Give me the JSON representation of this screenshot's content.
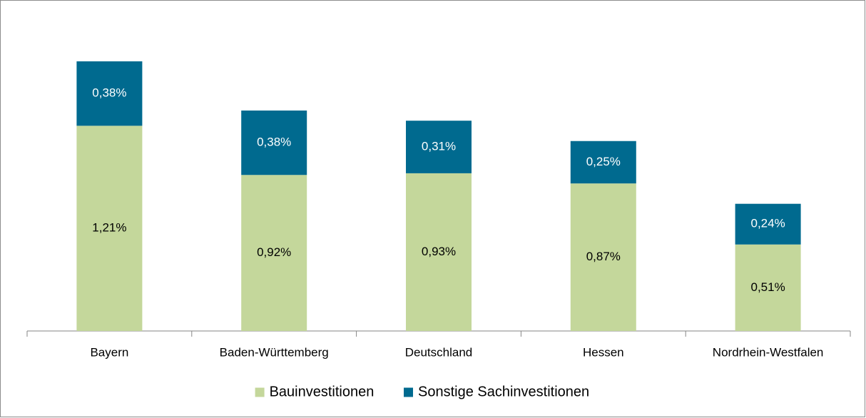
{
  "chart_data": {
    "type": "bar",
    "stacked": true,
    "categories": [
      "Bayern",
      "Baden-Württemberg",
      "Deutschland",
      "Hessen",
      "Nordrhein-Westfalen"
    ],
    "series": [
      {
        "name": "Bauinvestitionen",
        "color": "#c4d79b",
        "label_color": "#000000",
        "values": [
          1.21,
          0.92,
          0.93,
          0.87,
          0.51
        ],
        "value_labels": [
          "1,21%",
          "0,92%",
          "0,93%",
          "0,87%",
          "0,51%"
        ]
      },
      {
        "name": "Sonstige Sachinvestitionen",
        "color": "#006a8f",
        "label_color": "#ffffff",
        "values": [
          0.38,
          0.38,
          0.31,
          0.25,
          0.24
        ],
        "value_labels": [
          "0,38%",
          "0,38%",
          "0,31%",
          "0,25%",
          "0,24%"
        ]
      }
    ],
    "legend": "bottom"
  }
}
